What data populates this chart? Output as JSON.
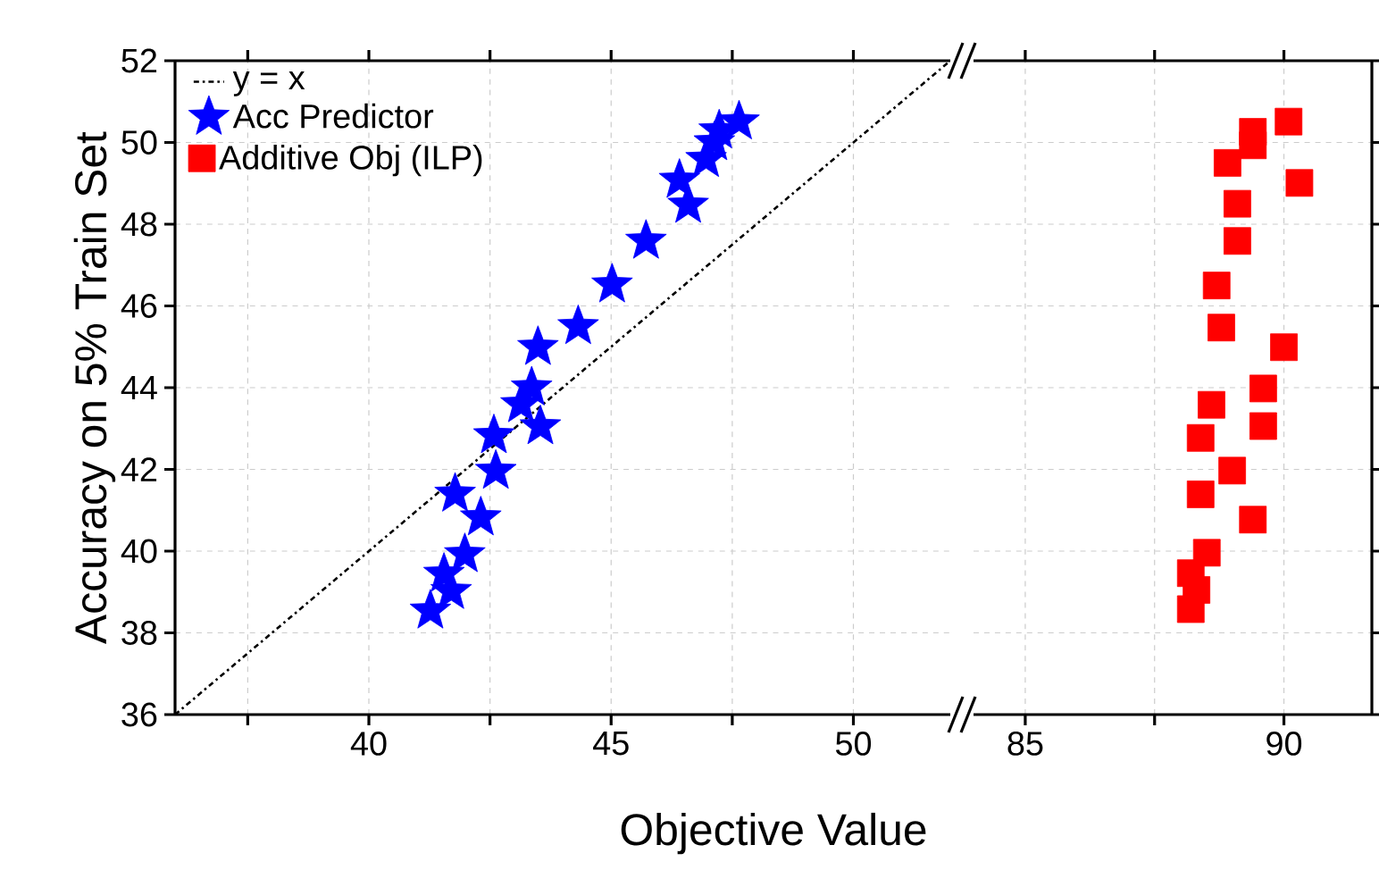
{
  "chart_data": [
    {
      "type": "scatter",
      "ylabel": "Accuracy on 5% Train Set",
      "xlabel": "Objective Value",
      "xlim": [
        36,
        52
      ],
      "ylim": [
        36,
        52
      ],
      "xticks": [
        {
          "value": 37.5,
          "label": null
        },
        40,
        {
          "value": 42.5,
          "label": null
        },
        45,
        {
          "value": 47.5,
          "label": null
        },
        50
      ],
      "yticks": [
        36,
        38,
        40,
        42,
        44,
        46,
        48,
        50,
        52
      ],
      "grid": true,
      "legend": "top left",
      "series": [
        {
          "type": "line",
          "name": "y = x",
          "color": "#000000",
          "line_style": "dashdot",
          "marker": "none",
          "x": [
            36,
            52
          ],
          "values": [
            36,
            52
          ]
        },
        {
          "type": "scatter",
          "name": "Acc Predictor",
          "color": "#0000ff",
          "marker": "star",
          "x": [
            41.27,
            41.7,
            41.55,
            41.98,
            42.31,
            41.78,
            42.62,
            42.58,
            43.54,
            43.14,
            43.36,
            43.49,
            44.32,
            45.02,
            45.72,
            46.59,
            46.41,
            46.96,
            47.13,
            47.23,
            47.64
          ],
          "values": [
            38.54,
            39.02,
            39.44,
            39.92,
            40.82,
            41.4,
            41.96,
            42.83,
            43.05,
            43.59,
            44.0,
            44.99,
            45.5,
            46.52,
            47.59,
            48.47,
            49.08,
            49.59,
            50.0,
            50.29,
            50.51
          ]
        }
      ]
    },
    {
      "type": "scatter",
      "xlim": [
        84,
        91.7
      ],
      "ylim": [
        36,
        52
      ],
      "xticks": [
        85,
        {
          "value": 87.5,
          "label": null
        },
        90
      ],
      "yticks": [
        36,
        38,
        40,
        42,
        44,
        46,
        48,
        50,
        52
      ],
      "grid": true,
      "tick_labels": "x",
      "legend": "top left",
      "series": [
        {
          "type": "scatter",
          "name": "Additive Obj (ILP)",
          "color": "#ff0000",
          "marker": "square",
          "x": [
            90.09,
            89.4,
            89.4,
            88.91,
            90.3,
            89.1,
            89.1,
            88.7,
            88.79,
            90.0,
            89.6,
            88.6,
            89.6,
            88.39,
            89.0,
            88.39,
            89.4,
            88.51,
            88.2,
            88.31,
            88.2
          ],
          "values": [
            50.51,
            50.26,
            49.93,
            49.5,
            49.01,
            48.5,
            47.59,
            46.5,
            45.47,
            44.99,
            43.98,
            43.58,
            43.06,
            42.77,
            41.97,
            41.39,
            40.77,
            39.96,
            39.46,
            39.05,
            38.58
          ]
        }
      ]
    }
  ]
}
